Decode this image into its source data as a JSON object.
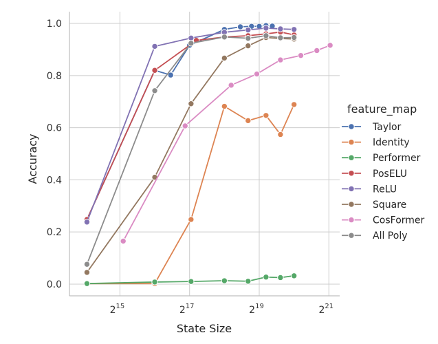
{
  "chart_data": {
    "type": "line",
    "xlabel": "State Size",
    "ylabel": "Accuracy",
    "x_scale": "log2",
    "xlim": [
      12000,
      2600000
    ],
    "ylim": [
      -0.045,
      1.045
    ],
    "x_ticks": [
      {
        "value": 32768,
        "base": "2",
        "exp": "15"
      },
      {
        "value": 131072,
        "base": "2",
        "exp": "17"
      },
      {
        "value": 524288,
        "base": "2",
        "exp": "19"
      },
      {
        "value": 2097152,
        "base": "2",
        "exp": "21"
      }
    ],
    "y_ticks": [
      "0.0",
      "0.2",
      "0.4",
      "0.6",
      "0.8",
      "1.0"
    ],
    "grid": true,
    "legend": {
      "title": "feature_map",
      "placement": "right"
    },
    "series": [
      {
        "name": "Taylor",
        "color": "#4c72b0",
        "points": [
          [
            17000,
            0.248
          ],
          [
            65536,
            0.82
          ],
          [
            90000,
            0.802
          ],
          [
            131072,
            0.916
          ],
          [
            262144,
            0.977
          ],
          [
            360000,
            0.987
          ],
          [
            450000,
            0.989
          ],
          [
            524288,
            0.989
          ],
          [
            600000,
            0.992
          ],
          [
            680000,
            0.99
          ]
        ]
      },
      {
        "name": "Identity",
        "color": "#dd8452",
        "points": [
          [
            17000,
            0.002
          ],
          [
            65536,
            0.002
          ],
          [
            135000,
            0.248
          ],
          [
            262144,
            0.682
          ],
          [
            420000,
            0.627
          ],
          [
            600000,
            0.647
          ],
          [
            800000,
            0.574
          ],
          [
            1048576,
            0.689
          ]
        ]
      },
      {
        "name": "Performer",
        "color": "#55a868",
        "points": [
          [
            17000,
            0.002
          ],
          [
            65536,
            0.008
          ],
          [
            135000,
            0.01
          ],
          [
            262144,
            0.013
          ],
          [
            420000,
            0.011
          ],
          [
            600000,
            0.027
          ],
          [
            800000,
            0.025
          ],
          [
            1048576,
            0.032
          ]
        ]
      },
      {
        "name": "PosELU",
        "color": "#c44e52",
        "points": [
          [
            17000,
            0.248
          ],
          [
            65536,
            0.82
          ],
          [
            150000,
            0.935
          ],
          [
            262144,
            0.948
          ],
          [
            420000,
            0.953
          ],
          [
            600000,
            0.96
          ],
          [
            800000,
            0.967
          ],
          [
            1048576,
            0.956
          ]
        ]
      },
      {
        "name": "ReLU",
        "color": "#8172b3",
        "points": [
          [
            17000,
            0.238
          ],
          [
            65536,
            0.912
          ],
          [
            135000,
            0.944
          ],
          [
            262144,
            0.966
          ],
          [
            420000,
            0.975
          ],
          [
            600000,
            0.982
          ],
          [
            800000,
            0.979
          ],
          [
            1048576,
            0.977
          ]
        ]
      },
      {
        "name": "Square",
        "color": "#937860",
        "points": [
          [
            17000,
            0.045
          ],
          [
            65536,
            0.41
          ],
          [
            135000,
            0.692
          ],
          [
            262144,
            0.867
          ],
          [
            420000,
            0.914
          ],
          [
            600000,
            0.946
          ],
          [
            800000,
            0.942
          ],
          [
            1048576,
            0.94
          ]
        ]
      },
      {
        "name": "CosFormer",
        "color": "#da8bc3",
        "points": [
          [
            35000,
            0.165
          ],
          [
            120000,
            0.607
          ],
          [
            300000,
            0.763
          ],
          [
            500000,
            0.806
          ],
          [
            800000,
            0.86
          ],
          [
            1200000,
            0.877
          ],
          [
            1650000,
            0.896
          ],
          [
            2150000,
            0.916
          ]
        ]
      },
      {
        "name": "All Poly",
        "color": "#8c8c8c",
        "points": [
          [
            17000,
            0.076
          ],
          [
            65536,
            0.742
          ],
          [
            135000,
            0.924
          ],
          [
            262144,
            0.948
          ],
          [
            420000,
            0.943
          ],
          [
            600000,
            0.953
          ],
          [
            800000,
            0.945
          ],
          [
            1048576,
            0.946
          ]
        ]
      }
    ]
  }
}
